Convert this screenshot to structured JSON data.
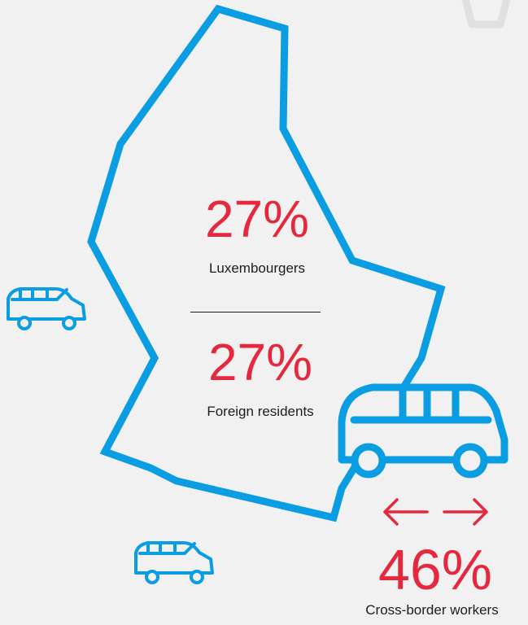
{
  "stats": {
    "luxembourgers": {
      "value": "27%",
      "label": "Luxembourgers"
    },
    "foreign_residents": {
      "value": "27%",
      "label": "Foreign residents"
    },
    "cross_border": {
      "value": "46%",
      "label": "Cross-border workers"
    }
  },
  "colors": {
    "background": "#f1f1f2",
    "map_outline": "#0a9de2",
    "accent_red": "#e5283e",
    "text": "#1d1d1f"
  },
  "icons": {
    "country_outline": "luxembourg-map-outline-icon",
    "car": "car-icon",
    "arrows": "left-right-arrows-icon"
  }
}
